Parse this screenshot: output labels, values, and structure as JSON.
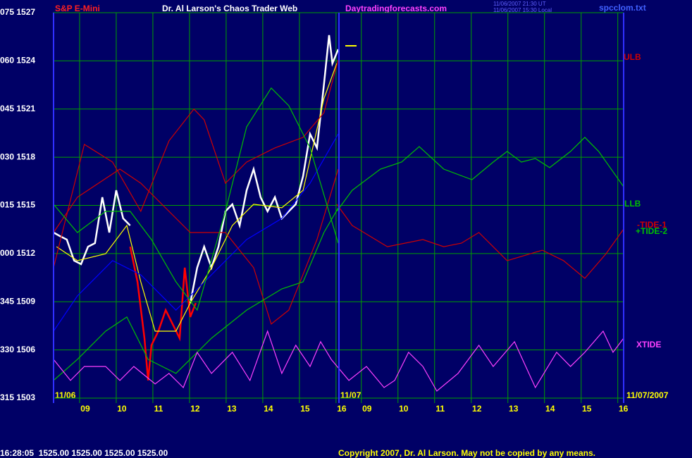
{
  "chart_data": {
    "type": "line",
    "title": "Dr. Al Larson's Chaos Trader Web",
    "subtitle": "S&P E-Mini",
    "site": "Daytradingforecasts.com",
    "timestamp_lines": [
      "11/06/2007 21:30 UT",
      "11/06/2007 15:30 Local"
    ],
    "file": "spcclom.txt",
    "date_labels": [
      "11/06",
      "11/07",
      "11/07/2007"
    ],
    "status": "16:28:05  1525.00 1525.00 1525.00 1525.00",
    "copyright": "Copyright 2007, Dr. Al Larson. May not be copied by any means.",
    "xlim": [
      8.27,
      23.85
    ],
    "xticks": [
      {
        "value": 9,
        "label": "09"
      },
      10,
      11,
      12,
      13,
      14,
      15,
      16,
      {
        "value": 16.69,
        "label": "09"
      },
      {
        "value": 17.69,
        "label": "10"
      },
      {
        "value": 18.69,
        "label": "11"
      },
      {
        "value": 19.69,
        "label": "12"
      },
      {
        "value": 20.69,
        "label": "13"
      },
      {
        "value": 21.69,
        "label": "14"
      },
      {
        "value": 22.69,
        "label": "15"
      },
      {
        "value": 23.69,
        "label": "16"
      }
    ],
    "ylim": [
      1503,
      1527
    ],
    "yticks": [
      {
        "value": 1527,
        "label": "075 1527"
      },
      {
        "value": 1524,
        "label": "060 1524"
      },
      {
        "value": 1521,
        "label": "045 1521"
      },
      {
        "value": 1518,
        "label": "030 1518"
      },
      {
        "value": 1515,
        "label": "015 1515"
      },
      {
        "value": 1512,
        "label": "000 1512"
      },
      {
        "value": 1509,
        "label": "345 1509"
      },
      {
        "value": 1506,
        "label": "330 1506"
      },
      {
        "value": 1503,
        "label": "315 1503"
      }
    ],
    "grid": true,
    "series": [
      {
        "color": "#ffffff",
        "x": [
          8.29,
          8.46,
          8.65,
          8.85,
          9.04,
          9.23,
          9.42,
          9.62,
          9.81,
          10.0,
          10.19,
          10.38,
          11.0,
          12.02,
          12.21,
          12.4,
          12.6,
          12.79,
          12.98,
          13.17,
          13.37,
          13.56,
          13.75,
          13.94,
          14.13,
          14.33,
          14.52,
          14.71,
          14.9,
          15.1,
          15.29,
          15.48,
          15.67,
          15.81,
          15.9,
          16.06
        ],
        "values": [
          1513.31,
          1513.09,
          1512.87,
          1511.56,
          1511.34,
          1512.43,
          1512.65,
          1515.51,
          1513.31,
          1515.94,
          1514.19,
          1513.75,
          null,
          1508.92,
          1511.12,
          1512.43,
          1511.12,
          1512.43,
          1514.63,
          1515.07,
          1513.75,
          1515.94,
          1517.26,
          1515.51,
          1514.63,
          1515.51,
          1514.19,
          1514.63,
          1515.07,
          1516.82,
          1519.45,
          1518.58,
          1522.53,
          1525.6,
          1523.84,
          1524.72
        ]
      },
      {
        "color": "#ff0000",
        "x": [
          10.38,
          10.58,
          10.77,
          10.87,
          10.96,
          11.15,
          11.35,
          11.54,
          11.73,
          11.87,
          12.02,
          12.17
        ],
        "values": [
          1512.43,
          1510.24,
          1506.73,
          1504.1,
          1506.29,
          1507.17,
          1508.48,
          1507.61,
          1506.73,
          1511.12,
          1508.05,
          1508.92
        ]
      },
      {
        "color": "#ffff00",
        "x": [
          8.37,
          8.94,
          9.71,
          10.29,
          10.67,
          11.06,
          11.63,
          12.02,
          12.6,
          13.17,
          13.75,
          14.52,
          15.1,
          15.67,
          16.02
        ],
        "values": [
          1512.43,
          1511.56,
          1511.99,
          1513.75,
          1510.24,
          1507.17,
          1507.17,
          1508.92,
          1511.12,
          1513.75,
          1515.07,
          1514.85,
          1515.94,
          1521.65,
          1523.84
        ]
      },
      {
        "color": "#0000ff",
        "x": [
          8.29,
          8.94,
          9.9,
          10.67,
          11.63,
          12.6,
          13.56,
          14.52,
          15.29,
          16.06
        ],
        "values": [
          1507.17,
          1509.36,
          1511.56,
          1510.68,
          1508.48,
          1510.68,
          1512.87,
          1514.19,
          1516.38,
          1519.45
        ]
      },
      {
        "name": "ULB",
        "color": "#d00000",
        "x": [
          8.29,
          9.13,
          9.9,
          10.67,
          11.44,
          12.12,
          12.4,
          12.98,
          13.56,
          14.33,
          15.1,
          15.67,
          16.06
        ],
        "values": [
          1511.12,
          1518.8,
          1517.7,
          1514.63,
          1519.02,
          1521.0,
          1520.33,
          1516.38,
          1517.7,
          1518.58,
          1519.24,
          1520.77,
          1524.06
        ]
      },
      {
        "color": "#d00000",
        "x": [
          8.29,
          8.94,
          10.1,
          10.67,
          12.02,
          12.98,
          13.75,
          14.23,
          14.71,
          15.48,
          16.06
        ],
        "values": [
          1513.31,
          1515.51,
          1517.26,
          1516.38,
          1513.31,
          1513.31,
          1511.12,
          1507.61,
          1508.48,
          1512.87,
          1517.26
        ]
      },
      {
        "color": "#00c000",
        "x": [
          8.29,
          8.94,
          9.71,
          10.38,
          10.96,
          11.63,
          12.21,
          12.98,
          13.56,
          14.23,
          14.71,
          15.29,
          16.06
        ],
        "values": [
          1515.07,
          1513.31,
          1514.63,
          1514.63,
          1512.87,
          1510.24,
          1508.48,
          1514.63,
          1519.89,
          1522.31,
          1521.21,
          1518.58,
          1512.65
        ]
      },
      {
        "name": "+TIDE-2",
        "color": "#00c000",
        "x": [
          8.29,
          8.94,
          9.71,
          10.29,
          10.87,
          11.63,
          12.6,
          13.56,
          14.52,
          15.1,
          15.67,
          16.06
        ],
        "values": [
          1504.1,
          1505.41,
          1507.17,
          1508.05,
          1505.41,
          1504.54,
          1506.73,
          1508.48,
          1509.8,
          1510.24,
          1513.31,
          1514.85
        ]
      },
      {
        "name": "LLB",
        "color": "#00c000",
        "x": [
          16.02,
          16.44,
          17.21,
          17.79,
          18.27,
          18.94,
          19.71,
          20.29,
          20.67,
          21.06,
          21.44,
          21.83,
          22.4,
          22.79,
          23.17,
          23.85
        ],
        "values": [
          1514.63,
          1515.94,
          1517.26,
          1517.7,
          1518.66,
          1517.26,
          1516.6,
          1517.7,
          1518.36,
          1517.7,
          1517.92,
          1517.35,
          1518.36,
          1519.24,
          1518.36,
          1516.16
        ]
      },
      {
        "name": "-TIDE-1",
        "color": "#d00000",
        "x": [
          16.02,
          16.44,
          17.4,
          18.37,
          18.94,
          19.42,
          19.9,
          20.67,
          21.63,
          22.21,
          22.79,
          23.37,
          23.85
        ],
        "values": [
          1515.07,
          1513.75,
          1512.43,
          1512.87,
          1512.43,
          1512.65,
          1513.31,
          1511.56,
          1512.21,
          1511.56,
          1510.46,
          1511.99,
          1513.53
        ]
      },
      {
        "name": "XTIDE",
        "color": "#ff40ff",
        "x": [
          8.29,
          8.75,
          9.13,
          9.71,
          10.1,
          10.48,
          11.06,
          11.44,
          11.83,
          12.21,
          12.6,
          13.17,
          13.65,
          14.13,
          14.52,
          14.9,
          15.29,
          15.58,
          15.87,
          16.35,
          16.83,
          17.31,
          17.6,
          17.98,
          18.37,
          18.75,
          19.33,
          19.9,
          20.29,
          20.87,
          21.44,
          22.02,
          22.4,
          22.79,
          23.29,
          23.56,
          23.85
        ],
        "values": [
          1505.41,
          1504.1,
          1504.97,
          1504.97,
          1504.1,
          1504.97,
          1503.88,
          1504.54,
          1503.66,
          1505.85,
          1504.54,
          1505.85,
          1504.1,
          1507.17,
          1504.54,
          1506.29,
          1504.97,
          1506.51,
          1505.41,
          1504.1,
          1504.97,
          1503.66,
          1504.1,
          1505.85,
          1504.97,
          1503.44,
          1504.54,
          1506.29,
          1504.97,
          1506.51,
          1503.66,
          1505.85,
          1504.97,
          1505.85,
          1507.17,
          1505.85,
          1506.73
        ]
      }
    ]
  }
}
